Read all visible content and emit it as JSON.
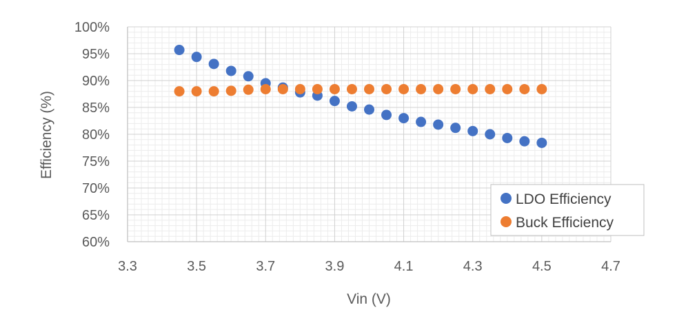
{
  "chart_data": {
    "type": "scatter",
    "title": "",
    "xlabel": "Vin (V)",
    "ylabel": "Efficiency (%)",
    "xlim": [
      3.3,
      4.7
    ],
    "ylim": [
      60,
      100
    ],
    "x_ticks": [
      3.3,
      3.5,
      3.7,
      3.9,
      4.1,
      4.3,
      4.5,
      4.7
    ],
    "x_tick_labels": [
      "3.3",
      "3.5",
      "3.7",
      "3.9",
      "4.1",
      "4.3",
      "4.5",
      "4.7"
    ],
    "y_ticks": [
      60,
      65,
      70,
      75,
      80,
      85,
      90,
      95,
      100
    ],
    "y_tick_labels": [
      "60%",
      "65%",
      "70%",
      "75%",
      "80%",
      "85%",
      "90%",
      "95%",
      "100%"
    ],
    "grid": true,
    "legend_position": "bottom-right",
    "series": [
      {
        "name": "LDO Efficiency",
        "color": "#4472C4",
        "x": [
          3.45,
          3.5,
          3.55,
          3.6,
          3.65,
          3.7,
          3.75,
          3.8,
          3.85,
          3.9,
          3.95,
          4.0,
          4.05,
          4.1,
          4.15,
          4.2,
          4.25,
          4.3,
          4.35,
          4.4,
          4.45,
          4.5
        ],
        "y": [
          95.7,
          94.4,
          93.1,
          91.8,
          90.8,
          89.5,
          88.7,
          87.8,
          87.2,
          86.2,
          85.2,
          84.6,
          83.6,
          83.0,
          82.3,
          81.8,
          81.2,
          80.6,
          80.0,
          79.3,
          78.7,
          78.4
        ]
      },
      {
        "name": "Buck Efficiency",
        "color": "#ED7D31",
        "x": [
          3.45,
          3.5,
          3.55,
          3.6,
          3.65,
          3.7,
          3.75,
          3.8,
          3.85,
          3.9,
          3.95,
          4.0,
          4.05,
          4.1,
          4.15,
          4.2,
          4.25,
          4.3,
          4.35,
          4.4,
          4.45,
          4.5
        ],
        "y": [
          88.0,
          88.0,
          88.0,
          88.1,
          88.3,
          88.4,
          88.4,
          88.4,
          88.4,
          88.4,
          88.4,
          88.4,
          88.4,
          88.4,
          88.4,
          88.4,
          88.4,
          88.4,
          88.4,
          88.4,
          88.4,
          88.4
        ]
      }
    ]
  }
}
